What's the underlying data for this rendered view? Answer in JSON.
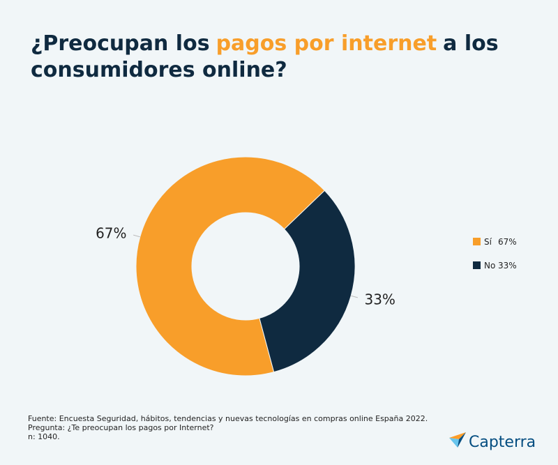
{
  "chart_data": {
    "type": "donut",
    "title_parts": [
      "¿Preocupan los",
      "pagos por internet",
      "a los",
      "consumidores online?"
    ],
    "title_highlight_part": 1,
    "title_color": "#0f2a40",
    "highlight_color": "#f89e2a",
    "categories": [
      "Sí",
      "No"
    ],
    "values": [
      67,
      33
    ],
    "value_labels": [
      "67%",
      "33%"
    ],
    "colors": [
      "#f89e2a",
      "#0f2a40"
    ],
    "legend": "right",
    "notes": [
      "Fuente: Encuesta Seguridad, hábitos, tendencias y nuevas tecnologías en compras online España 2022.",
      "Pregunta: ¿Te preocupan los pagos por Internet?",
      "n: 1040."
    ],
    "brand": "Capterra"
  }
}
